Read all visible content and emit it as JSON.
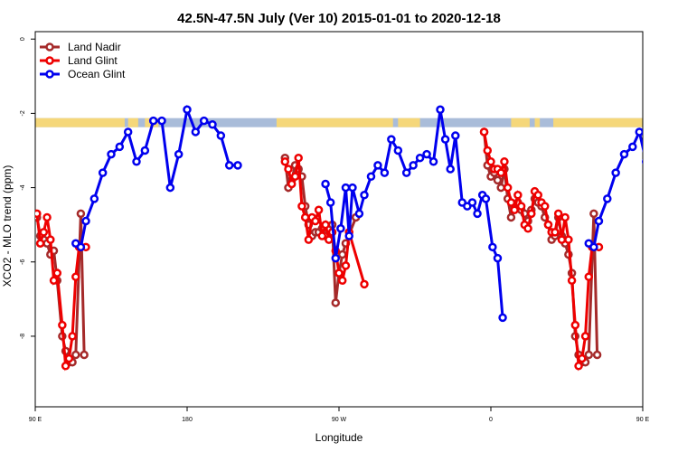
{
  "chart_data": {
    "type": "line",
    "title": "42.5N-47.5N July (Ver 10)   2015-01-01 to 2020-12-18",
    "xlabel": "Longitude",
    "ylabel": "XCO2 - MLO trend (ppm)",
    "xlim": [
      90,
      450
    ],
    "ylim": [
      -9.9,
      0.2
    ],
    "x_ticks": [
      {
        "value": 90,
        "label": "90 E"
      },
      {
        "value": 180,
        "label": "180"
      },
      {
        "value": 270,
        "label": "90 W"
      },
      {
        "value": 360,
        "label": "0"
      },
      {
        "value": 450,
        "label": "90 E"
      }
    ],
    "y_ticks": [
      {
        "value": 0,
        "label": "0"
      },
      {
        "value": -2,
        "label": "-2"
      },
      {
        "value": -4,
        "label": "-4"
      },
      {
        "value": -6,
        "label": "-6"
      },
      {
        "value": -8,
        "label": "-8"
      }
    ],
    "legend_position": "top-left",
    "land_ocean_strip": {
      "y_center": -2.25,
      "land_color": "#f5d77a",
      "ocean_color": "#a9bcd9",
      "land_ranges": [
        [
          90,
          143
        ],
        [
          145,
          151
        ],
        [
          155,
          163
        ],
        [
          233,
          302
        ],
        [
          305,
          318
        ],
        [
          372,
          383
        ],
        [
          386,
          389
        ],
        [
          397,
          453
        ]
      ]
    },
    "series": [
      {
        "name": "Land Nadir",
        "color": "#a52a2a",
        "points": [
          [
            91,
            -4.8
          ],
          [
            93,
            -5.3
          ],
          [
            95,
            -5.4
          ],
          [
            97,
            -5.5
          ],
          [
            99,
            -5.8
          ],
          [
            101,
            -5.7
          ],
          [
            103,
            -6.5
          ],
          [
            106,
            -8.0
          ],
          [
            108,
            -8.4
          ],
          [
            110,
            -8.7
          ],
          [
            112,
            -8.7
          ],
          [
            114,
            -8.5
          ],
          [
            117,
            -4.7
          ],
          [
            119,
            -8.5
          ],
          [
            238,
            -3.2
          ],
          [
            240,
            -4.0
          ],
          [
            242,
            -3.8
          ],
          [
            244,
            -3.4
          ],
          [
            246,
            -3.5
          ],
          [
            248,
            -3.7
          ],
          [
            250,
            -4.5
          ],
          [
            252,
            -5.0
          ],
          [
            254,
            -5.3
          ],
          [
            256,
            -5.2
          ],
          [
            258,
            -5.2
          ],
          [
            260,
            -5.1
          ],
          [
            262,
            -5.3
          ],
          [
            264,
            -5.1
          ],
          [
            266,
            -5.0
          ],
          [
            268,
            -7.1
          ],
          [
            270,
            -6.3
          ],
          [
            272,
            -5.8
          ],
          [
            274,
            -5.5
          ],
          [
            280,
            -4.8
          ],
          [
            356,
            -2.5
          ],
          [
            358,
            -3.4
          ],
          [
            360,
            -3.7
          ],
          [
            362,
            -3.6
          ],
          [
            364,
            -3.8
          ],
          [
            366,
            -4.0
          ],
          [
            368,
            -3.5
          ],
          [
            370,
            -4.3
          ],
          [
            372,
            -4.8
          ],
          [
            374,
            -4.5
          ],
          [
            376,
            -4.4
          ],
          [
            378,
            -4.6
          ],
          [
            380,
            -4.7
          ],
          [
            382,
            -4.9
          ],
          [
            384,
            -4.6
          ],
          [
            386,
            -4.3
          ],
          [
            388,
            -4.4
          ],
          [
            390,
            -4.5
          ],
          [
            392,
            -4.8
          ],
          [
            394,
            -5.0
          ],
          [
            396,
            -5.4
          ],
          [
            398,
            -5.3
          ],
          [
            400,
            -4.8
          ],
          [
            402,
            -5.3
          ],
          [
            404,
            -5.5
          ],
          [
            406,
            -5.8
          ],
          [
            408,
            -6.3
          ],
          [
            410,
            -8.0
          ],
          [
            412,
            -8.5
          ],
          [
            414,
            -8.7
          ],
          [
            416,
            -8.7
          ],
          [
            418,
            -8.5
          ],
          [
            421,
            -4.7
          ],
          [
            423,
            -8.5
          ]
        ]
      },
      {
        "name": "Land Glint",
        "color": "#ee0000",
        "points": [
          [
            91,
            -4.7
          ],
          [
            93,
            -5.5
          ],
          [
            95,
            -5.2
          ],
          [
            97,
            -4.8
          ],
          [
            99,
            -5.4
          ],
          [
            101,
            -6.5
          ],
          [
            103,
            -6.3
          ],
          [
            106,
            -7.7
          ],
          [
            108,
            -8.8
          ],
          [
            110,
            -8.6
          ],
          [
            112,
            -8.0
          ],
          [
            114,
            -6.4
          ],
          [
            116,
            -5.6
          ],
          [
            120,
            -5.6
          ],
          [
            238,
            -3.3
          ],
          [
            240,
            -3.5
          ],
          [
            242,
            -3.9
          ],
          [
            244,
            -3.7
          ],
          [
            246,
            -3.2
          ],
          [
            248,
            -4.5
          ],
          [
            250,
            -4.8
          ],
          [
            252,
            -5.4
          ],
          [
            254,
            -4.8
          ],
          [
            256,
            -4.9
          ],
          [
            258,
            -4.6
          ],
          [
            260,
            -5.3
          ],
          [
            262,
            -5.0
          ],
          [
            264,
            -5.4
          ],
          [
            266,
            -5.2
          ],
          [
            268,
            -5.7
          ],
          [
            270,
            -6.3
          ],
          [
            272,
            -6.5
          ],
          [
            274,
            -6.1
          ],
          [
            276,
            -5.2
          ],
          [
            285,
            -6.6
          ],
          [
            356,
            -2.5
          ],
          [
            358,
            -3.0
          ],
          [
            360,
            -3.3
          ],
          [
            362,
            -3.5
          ],
          [
            364,
            -3.5
          ],
          [
            366,
            -3.6
          ],
          [
            368,
            -3.3
          ],
          [
            370,
            -4.0
          ],
          [
            372,
            -4.4
          ],
          [
            374,
            -4.6
          ],
          [
            376,
            -4.2
          ],
          [
            378,
            -4.5
          ],
          [
            380,
            -5.0
          ],
          [
            382,
            -5.1
          ],
          [
            384,
            -4.7
          ],
          [
            386,
            -4.1
          ],
          [
            388,
            -4.2
          ],
          [
            390,
            -4.4
          ],
          [
            392,
            -4.5
          ],
          [
            394,
            -5.0
          ],
          [
            396,
            -5.2
          ],
          [
            398,
            -5.2
          ],
          [
            400,
            -4.7
          ],
          [
            402,
            -5.4
          ],
          [
            404,
            -4.8
          ],
          [
            406,
            -5.4
          ],
          [
            408,
            -6.5
          ],
          [
            410,
            -7.7
          ],
          [
            412,
            -8.8
          ],
          [
            414,
            -8.6
          ],
          [
            416,
            -8.0
          ],
          [
            418,
            -6.4
          ],
          [
            420,
            -5.6
          ],
          [
            424,
            -5.6
          ]
        ]
      },
      {
        "name": "Ocean Glint",
        "color": "#0000ee",
        "points": [
          [
            114,
            -5.5
          ],
          [
            117,
            -5.6
          ],
          [
            120,
            -4.9
          ],
          [
            125,
            -4.3
          ],
          [
            130,
            -3.6
          ],
          [
            135,
            -3.1
          ],
          [
            140,
            -2.9
          ],
          [
            145,
            -2.5
          ],
          [
            150,
            -3.3
          ],
          [
            155,
            -3.0
          ],
          [
            160,
            -2.2
          ],
          [
            165,
            -2.2
          ],
          [
            170,
            -4.0
          ],
          [
            175,
            -3.1
          ],
          [
            180,
            -1.9
          ],
          [
            185,
            -2.5
          ],
          [
            190,
            -2.2
          ],
          [
            195,
            -2.3
          ],
          [
            200,
            -2.6
          ],
          [
            205,
            -3.4
          ],
          [
            210,
            -3.4
          ],
          [
            262,
            -3.9
          ],
          [
            265,
            -4.4
          ],
          [
            268,
            -5.9
          ],
          [
            271,
            -5.1
          ],
          [
            274,
            -4.0
          ],
          [
            276,
            -5.3
          ],
          [
            278,
            -4.0
          ],
          [
            282,
            -4.7
          ],
          [
            285,
            -4.2
          ],
          [
            289,
            -3.7
          ],
          [
            293,
            -3.4
          ],
          [
            297,
            -3.6
          ],
          [
            301,
            -2.7
          ],
          [
            305,
            -3.0
          ],
          [
            310,
            -3.6
          ],
          [
            314,
            -3.4
          ],
          [
            318,
            -3.2
          ],
          [
            322,
            -3.1
          ],
          [
            326,
            -3.3
          ],
          [
            330,
            -1.9
          ],
          [
            333,
            -2.7
          ],
          [
            336,
            -3.5
          ],
          [
            339,
            -2.6
          ],
          [
            343,
            -4.4
          ],
          [
            346,
            -4.5
          ],
          [
            349,
            -4.4
          ],
          [
            352,
            -4.7
          ],
          [
            355,
            -4.2
          ],
          [
            357,
            -4.3
          ],
          [
            361,
            -5.6
          ],
          [
            364,
            -5.9
          ],
          [
            367,
            -7.5
          ],
          [
            418,
            -5.5
          ],
          [
            421,
            -5.6
          ],
          [
            424,
            -4.9
          ],
          [
            429,
            -4.3
          ],
          [
            434,
            -3.6
          ],
          [
            439,
            -3.1
          ],
          [
            444,
            -2.9
          ],
          [
            448,
            -2.5
          ],
          [
            452,
            -3.3
          ]
        ]
      }
    ]
  }
}
